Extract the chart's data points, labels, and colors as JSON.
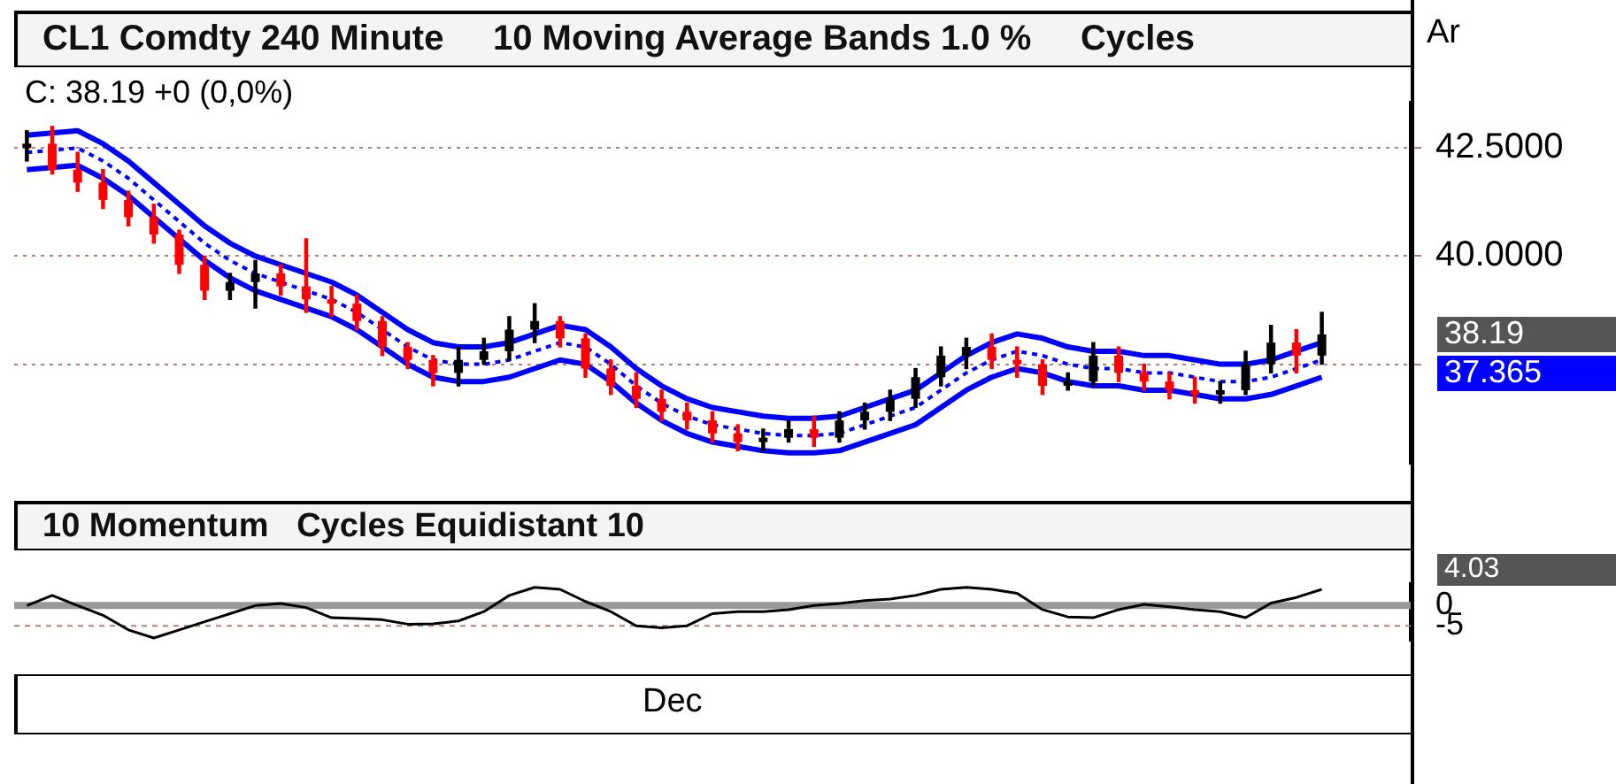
{
  "chart_data": [
    {
      "type": "candlestick",
      "title": "CL1 Comdty 240 Minute     10 Moving Average Bands 1.0 %     Cycles",
      "categories": [
        null,
        null,
        null,
        null,
        null,
        null,
        null,
        null,
        null,
        null,
        null,
        null,
        null,
        null,
        null,
        null,
        null,
        null,
        null,
        null,
        null,
        null,
        null,
        null,
        null,
        null,
        null,
        null,
        null,
        null,
        null,
        null,
        null,
        null,
        null,
        null,
        null,
        null,
        null,
        null,
        null,
        null,
        null,
        null,
        null,
        null,
        null,
        null,
        null,
        null,
        null,
        null,
        null,
        null,
        null
      ],
      "ohlc": [
        [
          42.5,
          42.9,
          42.2,
          42.6
        ],
        [
          42.6,
          43.0,
          41.9,
          42.0
        ],
        [
          42.0,
          42.4,
          41.5,
          41.7
        ],
        [
          41.7,
          42.0,
          41.1,
          41.3
        ],
        [
          41.3,
          41.5,
          40.7,
          40.9
        ],
        [
          40.9,
          41.2,
          40.3,
          40.5
        ],
        [
          40.5,
          40.6,
          39.6,
          39.8
        ],
        [
          39.8,
          40.0,
          39.0,
          39.2
        ],
        [
          39.2,
          39.6,
          39.0,
          39.4
        ],
        [
          39.4,
          39.9,
          38.8,
          39.6
        ],
        [
          39.6,
          39.8,
          39.1,
          39.3
        ],
        [
          39.3,
          40.4,
          38.7,
          39.0
        ],
        [
          39.0,
          39.3,
          38.6,
          38.9
        ],
        [
          38.9,
          39.1,
          38.3,
          38.5
        ],
        [
          38.5,
          38.6,
          37.7,
          37.9
        ],
        [
          37.9,
          38.0,
          37.4,
          37.6
        ],
        [
          37.6,
          37.7,
          37.0,
          37.3
        ],
        [
          37.3,
          37.9,
          37.0,
          37.6
        ],
        [
          37.6,
          38.1,
          37.5,
          37.8
        ],
        [
          37.8,
          38.6,
          37.6,
          38.3
        ],
        [
          38.3,
          38.9,
          38.0,
          38.5
        ],
        [
          38.5,
          38.6,
          37.9,
          38.1
        ],
        [
          38.1,
          38.2,
          37.2,
          37.4
        ],
        [
          37.4,
          37.6,
          36.8,
          37.0
        ],
        [
          37.0,
          37.3,
          36.5,
          36.7
        ],
        [
          36.7,
          36.9,
          36.2,
          36.4
        ],
        [
          36.4,
          36.6,
          36.0,
          36.2
        ],
        [
          36.2,
          36.4,
          35.7,
          35.9
        ],
        [
          35.9,
          36.1,
          35.5,
          35.7
        ],
        [
          35.7,
          36.0,
          35.5,
          35.8
        ],
        [
          35.8,
          36.2,
          35.7,
          36.0
        ],
        [
          36.0,
          36.3,
          35.6,
          35.8
        ],
        [
          35.8,
          36.4,
          35.7,
          36.2
        ],
        [
          36.2,
          36.6,
          36.0,
          36.4
        ],
        [
          36.4,
          36.9,
          36.2,
          36.7
        ],
        [
          36.7,
          37.4,
          36.5,
          37.2
        ],
        [
          37.2,
          37.9,
          37.0,
          37.7
        ],
        [
          37.7,
          38.1,
          37.4,
          37.9
        ],
        [
          37.9,
          38.2,
          37.4,
          37.6
        ],
        [
          37.6,
          37.9,
          37.2,
          37.5
        ],
        [
          37.5,
          37.6,
          36.8,
          37.0
        ],
        [
          37.0,
          37.3,
          36.9,
          37.1
        ],
        [
          37.1,
          38.0,
          37.0,
          37.7
        ],
        [
          37.7,
          37.9,
          37.1,
          37.3
        ],
        [
          37.3,
          37.5,
          36.9,
          37.1
        ],
        [
          37.1,
          37.3,
          36.7,
          36.9
        ],
        [
          36.9,
          37.2,
          36.6,
          36.8
        ],
        [
          36.8,
          37.1,
          36.6,
          36.9
        ],
        [
          36.9,
          37.8,
          36.8,
          37.5
        ],
        [
          37.5,
          38.4,
          37.3,
          38.0
        ],
        [
          38.0,
          38.3,
          37.3,
          37.7
        ],
        [
          37.7,
          38.7,
          37.5,
          38.19
        ],
        null,
        null,
        null
      ],
      "colors": [
        "#000000",
        "#ff0000",
        "#ff0000",
        "#ff0000",
        "#ff0000",
        "#ff0000",
        "#ff0000",
        "#ff0000",
        "#000000",
        "#000000",
        "#ff0000",
        "#ff0000",
        "#ff0000",
        "#ff0000",
        "#ff0000",
        "#ff0000",
        "#ff0000",
        "#000000",
        "#000000",
        "#000000",
        "#000000",
        "#ff0000",
        "#ff0000",
        "#ff0000",
        "#ff0000",
        "#ff0000",
        "#ff0000",
        "#ff0000",
        "#ff0000",
        "#000000",
        "#000000",
        "#ff0000",
        "#000000",
        "#000000",
        "#000000",
        "#000000",
        "#000000",
        "#000000",
        "#ff0000",
        "#ff0000",
        "#ff0000",
        "#000000",
        "#000000",
        "#ff0000",
        "#ff0000",
        "#ff0000",
        "#ff0000",
        "#000000",
        "#000000",
        "#000000",
        "#ff0000",
        "#000000",
        null,
        null,
        null
      ],
      "series": [
        {
          "type": "line",
          "color": "#0000ff",
          "line_style": "solid",
          "values": [
            42.8,
            42.85,
            42.9,
            42.6,
            42.2,
            41.7,
            41.2,
            40.7,
            40.3,
            40.0,
            39.8,
            39.6,
            39.4,
            39.1,
            38.7,
            38.3,
            38.0,
            37.9,
            37.9,
            38.0,
            38.2,
            38.4,
            38.3,
            37.9,
            37.4,
            37.0,
            36.7,
            36.5,
            36.4,
            36.3,
            36.25,
            36.25,
            36.3,
            36.5,
            36.7,
            36.9,
            37.3,
            37.7,
            38.0,
            38.2,
            38.1,
            37.9,
            37.8,
            37.8,
            37.7,
            37.7,
            37.6,
            37.5,
            37.5,
            37.6,
            37.8,
            38.0,
            null,
            null,
            null
          ]
        },
        {
          "type": "line",
          "color": "#0000ff",
          "line_style": "dotted",
          "values": [
            42.4,
            42.45,
            42.5,
            42.2,
            41.8,
            41.3,
            40.8,
            40.3,
            39.9,
            39.6,
            39.4,
            39.2,
            39.0,
            38.7,
            38.3,
            37.9,
            37.6,
            37.5,
            37.5,
            37.6,
            37.8,
            38.0,
            37.9,
            37.5,
            37.0,
            36.6,
            36.3,
            36.1,
            36.0,
            35.9,
            35.85,
            35.85,
            35.9,
            36.1,
            36.3,
            36.5,
            36.9,
            37.3,
            37.6,
            37.8,
            37.7,
            37.5,
            37.4,
            37.4,
            37.3,
            37.3,
            37.2,
            37.1,
            37.1,
            37.2,
            37.4,
            37.6,
            null,
            null,
            null
          ]
        },
        {
          "type": "line",
          "color": "#0000ff",
          "line_style": "solid",
          "values": [
            42.0,
            42.05,
            42.1,
            41.8,
            41.4,
            40.9,
            40.4,
            39.9,
            39.5,
            39.2,
            39.0,
            38.8,
            38.6,
            38.3,
            37.9,
            37.5,
            37.2,
            37.1,
            37.1,
            37.2,
            37.4,
            37.6,
            37.5,
            37.1,
            36.6,
            36.2,
            35.9,
            35.7,
            35.6,
            35.5,
            35.45,
            35.45,
            35.5,
            35.7,
            35.9,
            36.1,
            36.5,
            36.9,
            37.2,
            37.4,
            37.3,
            37.1,
            37.0,
            37.0,
            36.9,
            36.9,
            36.8,
            36.7,
            36.7,
            36.8,
            37.0,
            37.2,
            null,
            null,
            null
          ]
        }
      ],
      "ylim": [
        35.2,
        43.55
      ],
      "yticks": [
        {
          "value": 37.5,
          "label": null
        },
        {
          "value": 40,
          "label": "40.0000"
        },
        {
          "value": 42.5,
          "label": "42.5000"
        }
      ],
      "grid": "y",
      "tick_labels": "y",
      "marker": "none",
      "annotations": [
        "C: 38.19 +0 (0,0%)",
        "Ar",
        "38.19",
        "37.365"
      ]
    },
    {
      "type": "line",
      "title": "10 Momentum   Cycles Equidistant 10",
      "categories": [
        null,
        null,
        null,
        null,
        null,
        null,
        null,
        null,
        null,
        null,
        null,
        null,
        null,
        null,
        null,
        null,
        null,
        null,
        null,
        null,
        null,
        null,
        null,
        null,
        null,
        null,
        null,
        null,
        null,
        null,
        null,
        null,
        null,
        null,
        null,
        null,
        null,
        null,
        null,
        null,
        null,
        null,
        null,
        null,
        null,
        null,
        null,
        null,
        null,
        null,
        null,
        null,
        null,
        null,
        null
      ],
      "series": [
        {
          "color": "#000000",
          "values": [
            0,
            2.5,
            0,
            -2.4,
            -6,
            -8,
            -6,
            -4,
            -2,
            0,
            0.5,
            -0.5,
            -3,
            -3.2,
            -3.5,
            -4.6,
            -4.5,
            -3.8,
            -1.5,
            2.5,
            4.5,
            4,
            1,
            -1.5,
            -5,
            -5.5,
            -5,
            -2,
            -1.5,
            -1.5,
            -1,
            0,
            0.5,
            1.2,
            1.6,
            2.5,
            4,
            4.5,
            4,
            3,
            -1,
            -2.8,
            -3,
            -1,
            0.3,
            -0.3,
            -1,
            -1.5,
            -3,
            0.6,
            2,
            4,
            null,
            null,
            null
          ]
        }
      ],
      "ylim": [
        -8.75,
        5.4
      ],
      "yticks": [
        -5,
        0
      ],
      "tick_labels": "y",
      "marker": "none",
      "line_style": "solid",
      "ref_lines": [
        {
          "axis": "y",
          "value": 0,
          "color": "#999999",
          "line_style": "solid"
        },
        {
          "axis": "y",
          "value": -5,
          "color": "#b08080",
          "line_style": "dotted"
        }
      ],
      "annotations": [
        "4.03",
        "Dec"
      ]
    }
  ]
}
